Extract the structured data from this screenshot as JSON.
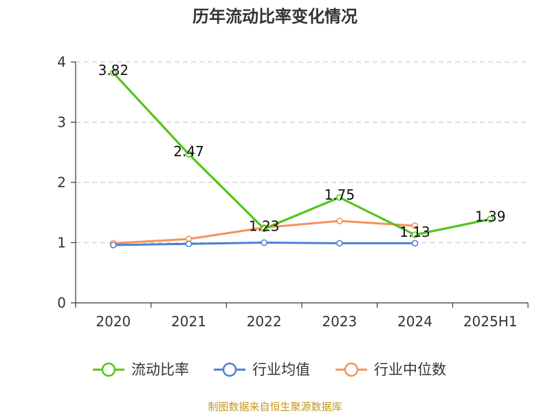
{
  "chart_data": {
    "type": "line",
    "title": "历年流动比率变化情况",
    "categories": [
      "2020",
      "2021",
      "2022",
      "2023",
      "2024",
      "2025H1"
    ],
    "ylim": [
      0,
      4
    ],
    "yticks": [
      0,
      1,
      2,
      3,
      4
    ],
    "grid": true,
    "legend_position": "bottom",
    "series": [
      {
        "name": "流动比率",
        "color": "#52c41a",
        "values": [
          3.82,
          2.47,
          1.23,
          1.75,
          1.13,
          1.39
        ],
        "labels": [
          "3.82",
          "2.47",
          "1.23",
          "1.75",
          "1.13",
          "1.39"
        ]
      },
      {
        "name": "行业均值",
        "color": "#4a7fd6",
        "values": [
          0.96,
          0.98,
          1.0,
          0.99,
          0.99,
          null
        ]
      },
      {
        "name": "行业中位数",
        "color": "#f5915a",
        "values": [
          0.99,
          1.06,
          1.25,
          1.36,
          1.28,
          null
        ]
      }
    ]
  },
  "source": "制图数据来自恒生聚源数据库"
}
